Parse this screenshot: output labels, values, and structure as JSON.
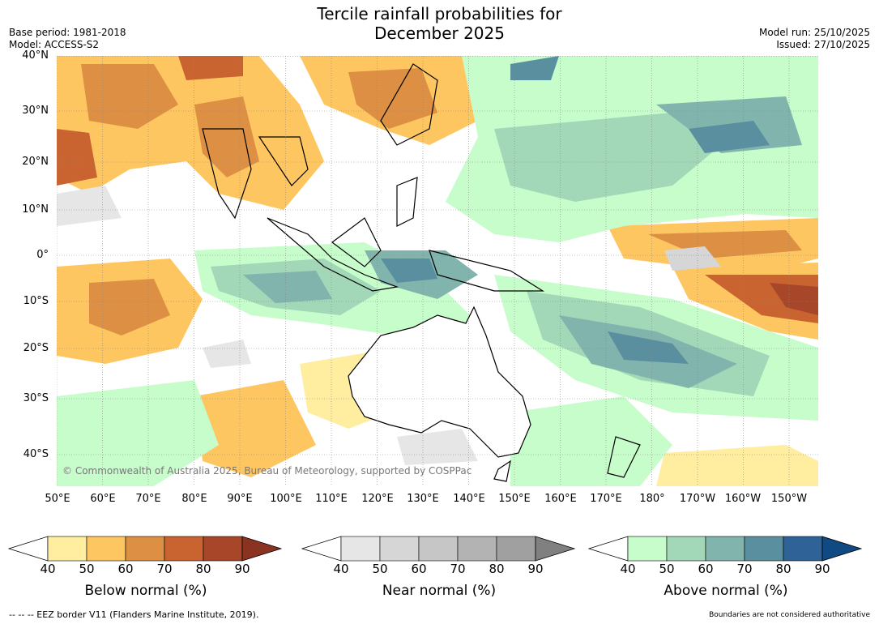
{
  "title_line1": "Tercile rainfall probabilities for",
  "title_line2": "December 2025",
  "base_period": "Base period: 1981-2018",
  "model": "Model: ACCESS-S2",
  "model_run": "Model run: 25/10/2025",
  "issued": "Issued: 27/10/2025",
  "copyright": "© Commonwealth of Australia 2025, Bureau of Meteorology, supported by COSPPac",
  "lat_labels": [
    "40°N",
    "30°N",
    "20°N",
    "10°N",
    "0°",
    "10°S",
    "20°S",
    "30°S",
    "40°S"
  ],
  "lon_labels": [
    "50°E",
    "60°E",
    "70°E",
    "80°E",
    "90°E",
    "100°E",
    "110°E",
    "120°E",
    "130°E",
    "140°E",
    "150°E",
    "160°E",
    "170°E",
    "180°",
    "170°W",
    "160°W",
    "150°W"
  ],
  "colorbars": [
    {
      "title": "Below normal (%)",
      "ticks": [
        "40",
        "50",
        "60",
        "70",
        "80",
        "90"
      ],
      "colors": [
        "#ffeda0",
        "#fec661",
        "#dd9043",
        "#c96330",
        "#a8462a"
      ],
      "extend_color": "#8b3321"
    },
    {
      "title": "Near normal (%)",
      "ticks": [
        "40",
        "50",
        "60",
        "70",
        "80",
        "90"
      ],
      "colors": [
        "#e6e6e6",
        "#d6d6d6",
        "#c6c6c6",
        "#b3b3b3",
        "#a0a0a0"
      ],
      "extend_color": "#808080"
    },
    {
      "title": "Above normal (%)",
      "ticks": [
        "40",
        "50",
        "60",
        "70",
        "80",
        "90"
      ],
      "colors": [
        "#c7fccb",
        "#a2d8b8",
        "#80b4ac",
        "#5a8fa0",
        "#2f6397"
      ],
      "extend_color": "#0f4a82"
    }
  ],
  "footnote_left": "--  --  -- EEZ border V11 (Flanders Marine Institute, 2019).",
  "footnote_right": "Boundaries are not considered authoritative"
}
